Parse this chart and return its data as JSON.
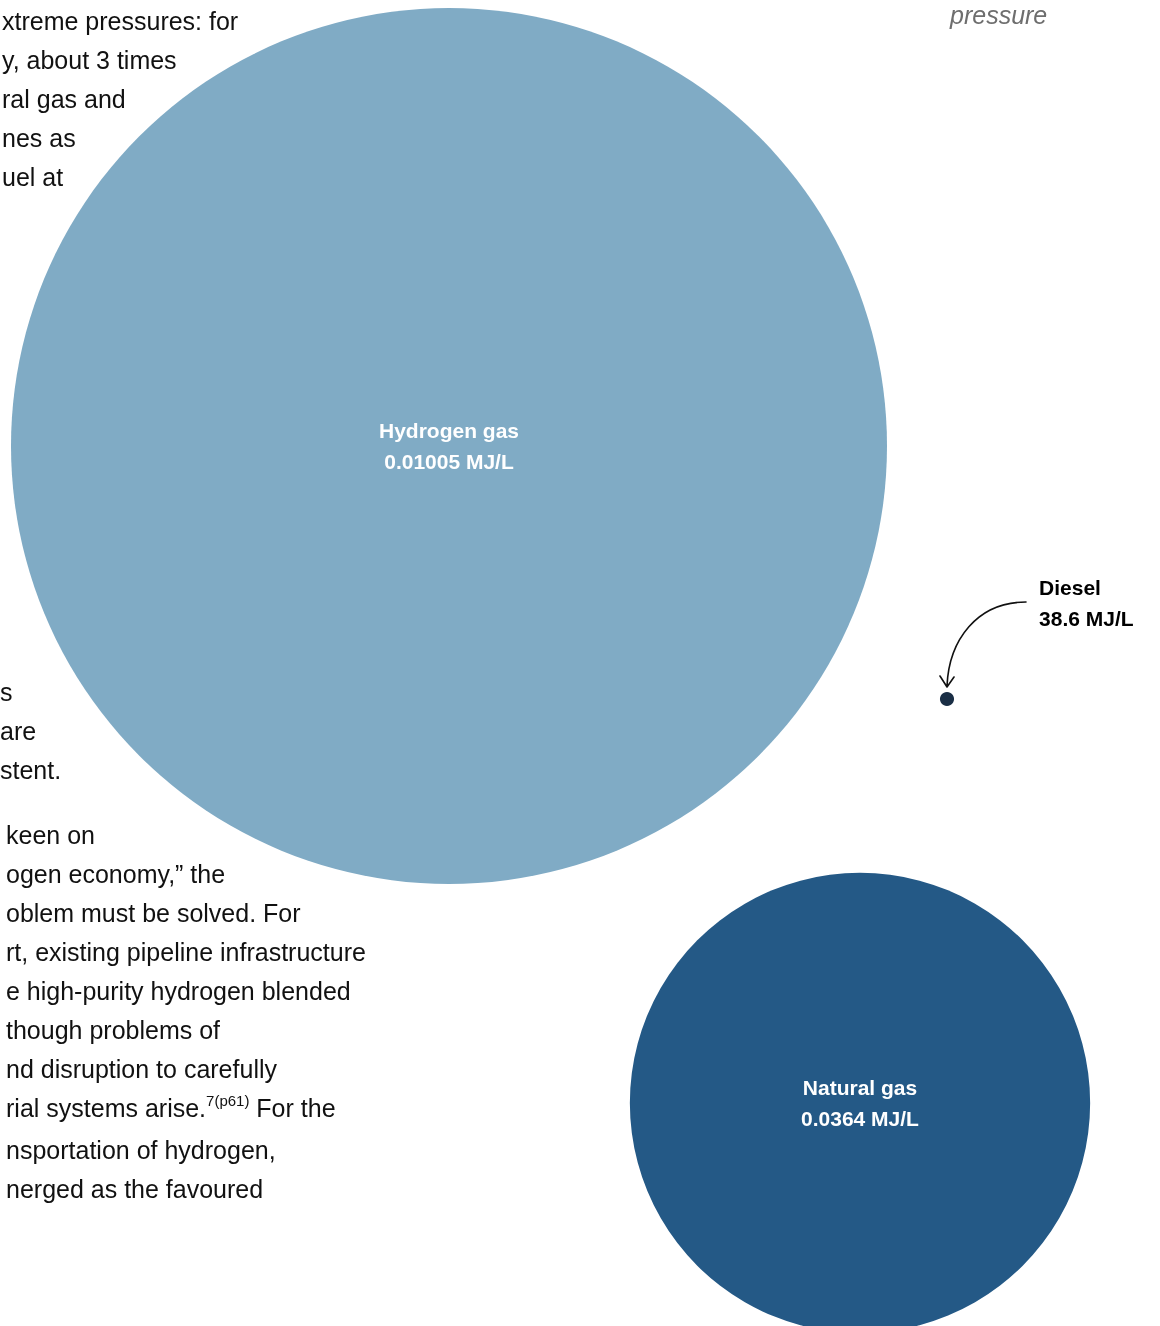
{
  "chart_data": {
    "type": "other",
    "categories": [
      "Hydrogen gas",
      "Natural gas",
      "Diesel"
    ],
    "values": [
      0.01005,
      0.0364,
      38.6
    ],
    "value_labels": [
      "0.01005 MJ/L",
      "0.0364 MJ/L",
      "38.6 MJ/L"
    ],
    "colors": [
      "#80abc5",
      "#245986",
      "#1a2e45"
    ],
    "annotations": [
      "pressure",
      "xtreme pressures: for\ny, about 3 times\nral gas and\nnes as\nuel at",
      "s\nare\nstent.",
      "keen on\nogen economy,” the\noblem must be solved. For\nrt, existing pipeline infrastructure\ne high-purity hydrogen blended\nthough problems of\nnd disruption to carefully\nrial systems arise.$^{7(p61)}$ For the\nnsportation of hydrogen,\nnerged as the favoured"
    ]
  }
}
